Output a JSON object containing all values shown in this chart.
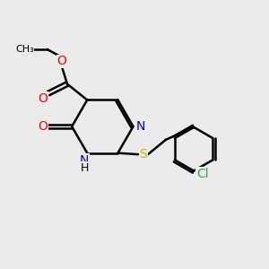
{
  "bg_color": "#ebebeb",
  "bond_color": "#000000",
  "bond_width": 1.8,
  "atom_colors": {
    "N": "#0000cc",
    "O": "#ff0000",
    "S": "#bbbb00",
    "Cl": "#33aa33",
    "C": "#000000"
  },
  "font_size": 9,
  "fig_size": [
    3.0,
    3.0
  ],
  "dpi": 100
}
